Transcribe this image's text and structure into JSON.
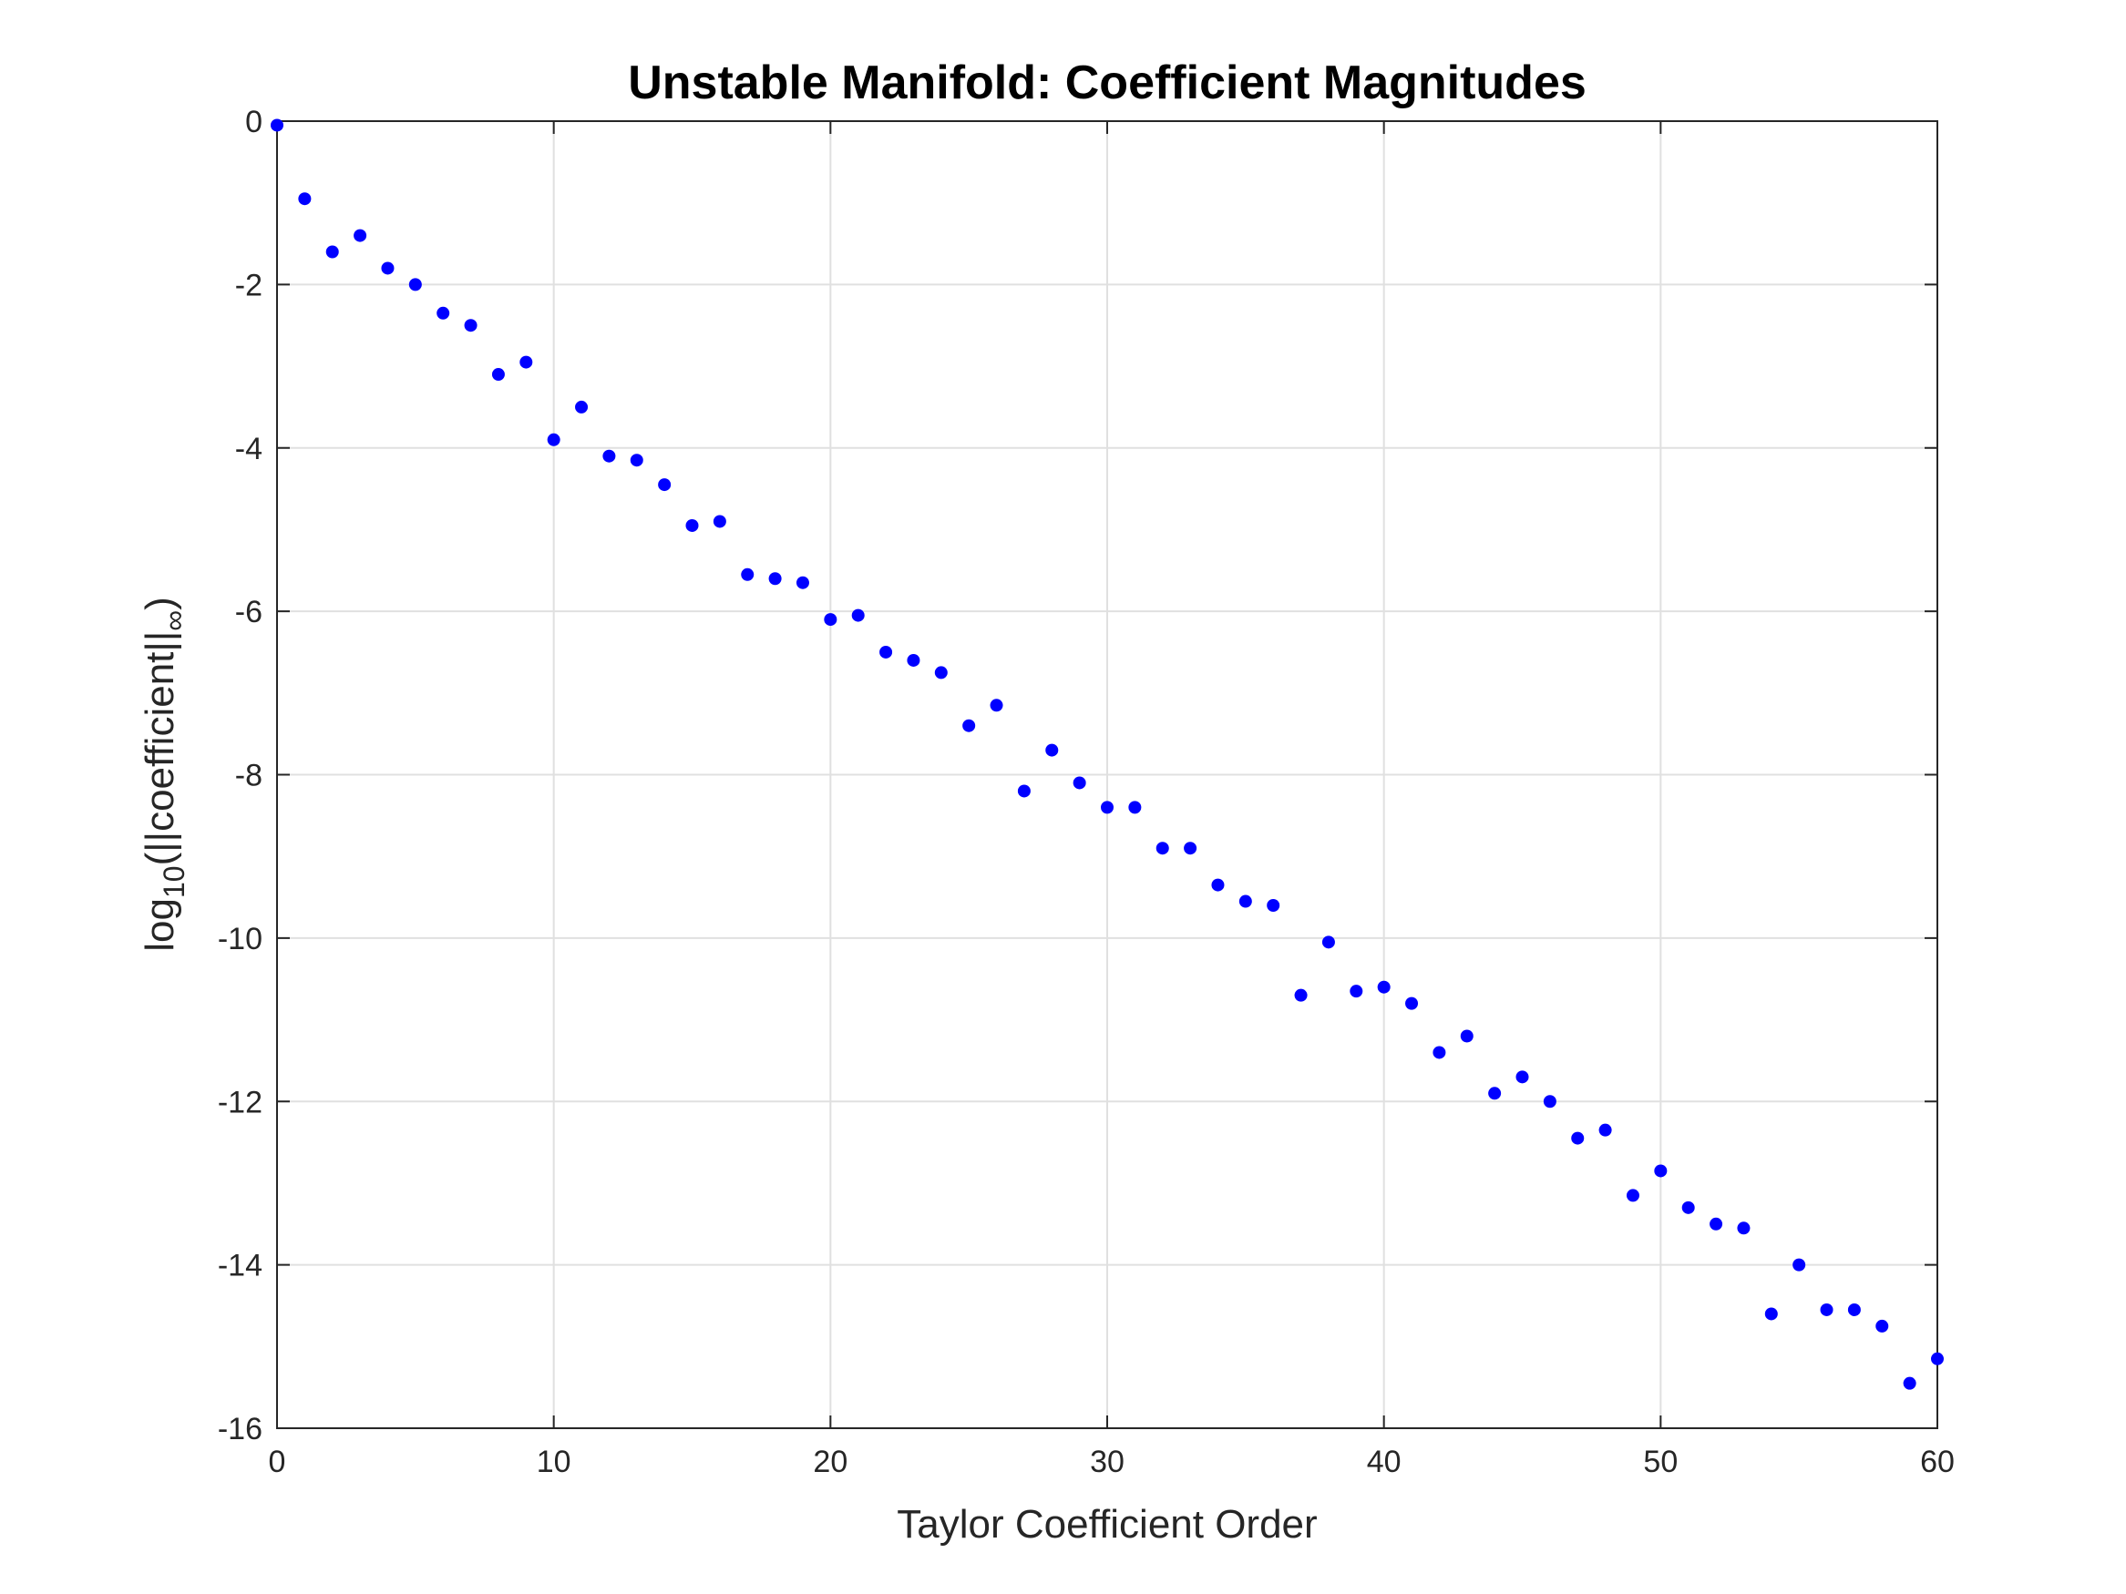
{
  "chart_data": {
    "type": "scatter",
    "title": "Unstable Manifold: Coefficient Magnitudes",
    "xlabel": "Taylor Coefficient Order",
    "ylabel": {
      "prefix": "log",
      "sub1": "10",
      "mid": "(||coefficient||",
      "sub2": "∞",
      "suffix": ")"
    },
    "xlim": [
      0,
      60
    ],
    "ylim": [
      -16,
      0
    ],
    "xticks": [
      0,
      10,
      20,
      30,
      40,
      50,
      60
    ],
    "yticks": [
      0,
      -2,
      -4,
      -6,
      -8,
      -10,
      -12,
      -14,
      -16
    ],
    "grid": true,
    "marker_color": "#0000ff",
    "x": [
      0,
      1,
      2,
      3,
      4,
      5,
      6,
      7,
      8,
      9,
      10,
      11,
      12,
      13,
      14,
      15,
      16,
      17,
      18,
      19,
      20,
      21,
      22,
      23,
      24,
      25,
      26,
      27,
      28,
      29,
      30,
      31,
      32,
      33,
      34,
      35,
      36,
      37,
      38,
      39,
      40,
      41,
      42,
      43,
      44,
      45,
      46,
      47,
      48,
      49,
      50,
      51,
      52,
      53,
      54,
      55,
      56,
      57,
      58,
      59,
      60
    ],
    "y": [
      -0.05,
      -0.95,
      -1.6,
      -1.4,
      -1.8,
      -2.0,
      -2.35,
      -2.5,
      -3.1,
      -2.95,
      -3.9,
      -3.5,
      -4.1,
      -4.15,
      -4.45,
      -4.95,
      -4.9,
      -5.55,
      -5.6,
      -5.65,
      -6.1,
      -6.05,
      -6.5,
      -6.6,
      -6.75,
      -7.4,
      -7.15,
      -8.2,
      -7.7,
      -8.1,
      -8.4,
      -8.4,
      -8.9,
      -8.9,
      -9.35,
      -9.55,
      -9.6,
      -10.7,
      -10.05,
      -10.65,
      -10.6,
      -10.8,
      -11.4,
      -11.2,
      -11.9,
      -11.7,
      -12.0,
      -12.45,
      -12.35,
      -13.15,
      -12.85,
      -13.3,
      -13.5,
      -13.55,
      -14.6,
      -14.0,
      -14.55,
      -14.55,
      -14.75,
      -15.45,
      -15.15
    ]
  }
}
